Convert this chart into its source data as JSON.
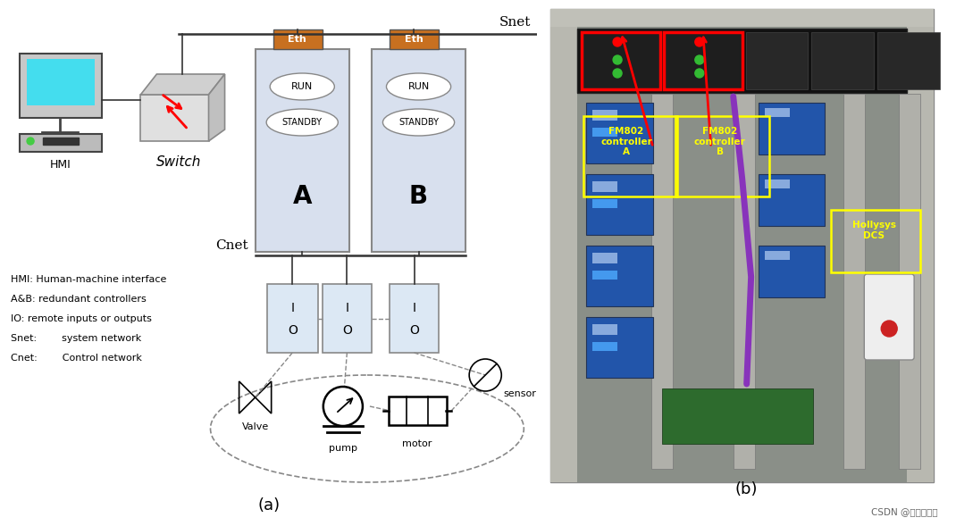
{
  "fig_width": 10.7,
  "fig_height": 5.89,
  "bg_color": "#ffffff",
  "snet_label": "Snet",
  "cnet_label": "Cnet",
  "sub_label_a": "(a)",
  "sub_label_b": "(b)",
  "watermark": "CSDN @信安科研人",
  "legend_lines": [
    "HMI: Human-machine interface",
    "A&B: redundant controllers",
    "IO: remote inputs or outputs",
    "Snet:        system network",
    "Cnet:        Control network"
  ],
  "eth_color": "#c87020",
  "controller_fill": "#d8e0ee",
  "controller_border": "#888888",
  "io_fill": "#dce8f4",
  "io_border": "#999999",
  "line_color": "#333333",
  "dashed_color": "#888888"
}
